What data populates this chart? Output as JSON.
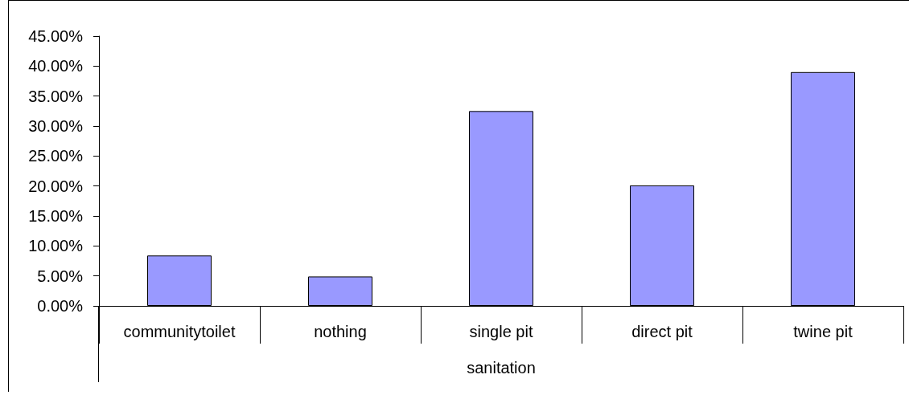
{
  "chart_data": {
    "type": "bar",
    "xlabel": "sanitation",
    "categories": [
      "communitytoilet",
      "nothing",
      "single pit",
      "direct pit",
      "twine pit"
    ],
    "values": [
      8.4,
      4.9,
      32.5,
      20.1,
      39.0
    ],
    "color": "#9999ff",
    "ylim": [
      0,
      45
    ],
    "yticks": [
      {
        "value": 0,
        "label": "0.00%"
      },
      {
        "value": 5,
        "label": "5.00%"
      },
      {
        "value": 10,
        "label": "10.00%"
      },
      {
        "value": 15,
        "label": "15.00%"
      },
      {
        "value": 20,
        "label": "20.00%"
      },
      {
        "value": 25,
        "label": "25.00%"
      },
      {
        "value": 30,
        "label": "30.00%"
      },
      {
        "value": 35,
        "label": "35.00%"
      },
      {
        "value": 40,
        "label": "40.00%"
      },
      {
        "value": 45,
        "label": "45.00%"
      }
    ]
  }
}
